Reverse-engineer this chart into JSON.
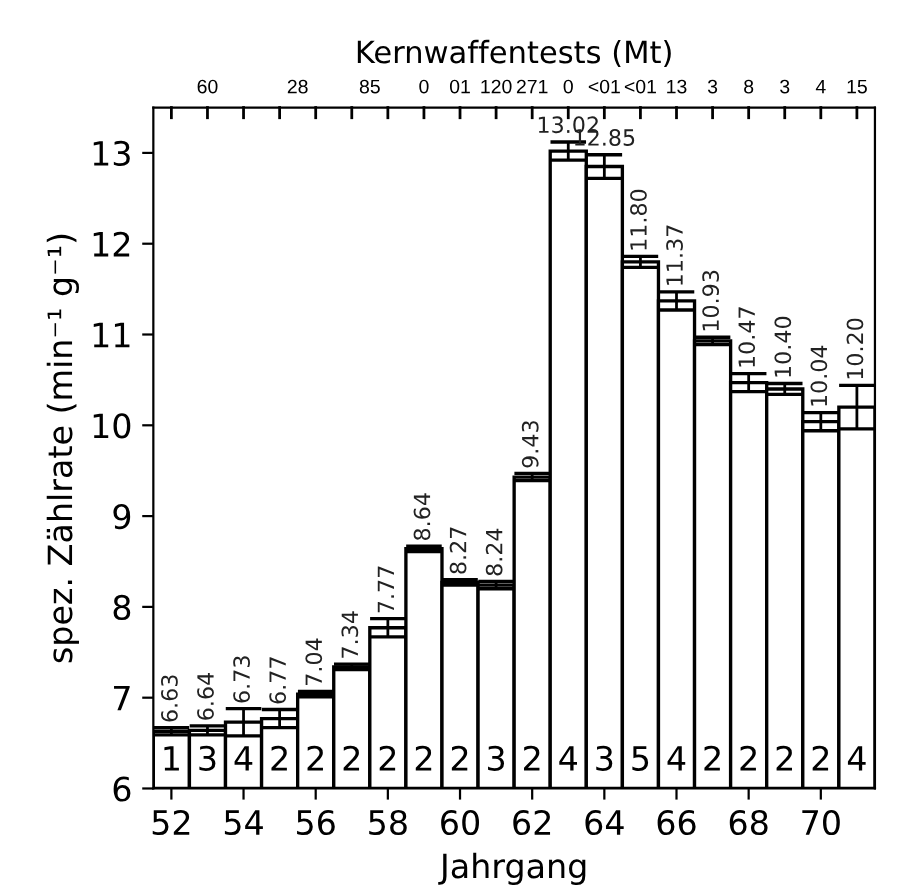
{
  "chart_data": {
    "type": "bar",
    "x2label": "Kernwaffentests (Mt)",
    "xlabel": "Jahrgang",
    "ylabel": "spez. Zählrate (min⁻¹ g⁻¹)",
    "x": [
      52,
      53,
      54,
      55,
      56,
      57,
      58,
      59,
      60,
      61,
      62,
      63,
      64,
      65,
      66,
      67,
      68,
      69,
      70,
      71
    ],
    "values": [
      6.63,
      6.64,
      6.73,
      6.77,
      7.04,
      7.34,
      7.77,
      8.64,
      8.27,
      8.24,
      9.43,
      13.02,
      12.85,
      11.8,
      11.37,
      10.93,
      10.47,
      10.4,
      10.04,
      10.2
    ],
    "errors": [
      0.04,
      0.05,
      0.15,
      0.1,
      0.03,
      0.03,
      0.1,
      0.03,
      0.03,
      0.04,
      0.04,
      0.1,
      0.13,
      0.06,
      0.1,
      0.04,
      0.1,
      0.06,
      0.1,
      0.24
    ],
    "value_labels": [
      "6.63",
      "6.64",
      "6.73",
      "6.77",
      "7.04",
      "7.34",
      "7.77",
      "8.64",
      "8.27",
      "8.24",
      "9.43",
      "13.02",
      "12.85",
      "11.80",
      "11.37",
      "10.93",
      "10.47",
      "10.40",
      "10.04",
      "10.20"
    ],
    "color": "#ffffff",
    "xlim": [
      51.5,
      71.5
    ],
    "xticks": [
      52,
      54,
      56,
      58,
      60,
      62,
      64,
      66,
      68,
      70
    ],
    "ylim": [
      6,
      13.5
    ],
    "yticks": [
      6,
      7,
      8,
      9,
      10,
      11,
      12,
      13
    ],
    "annotations": [
      "60",
      "28",
      "85",
      "0",
      "01",
      "120",
      "271",
      "0",
      "<01",
      "<01",
      "13",
      "3",
      "8",
      "3",
      "4",
      "15",
      "1",
      "3",
      "4",
      "2",
      "2",
      "2",
      "2",
      "2",
      "2",
      "3",
      "2",
      "4",
      "3",
      "5",
      "4",
      "2",
      "2",
      "2",
      "2",
      "4"
    ]
  }
}
